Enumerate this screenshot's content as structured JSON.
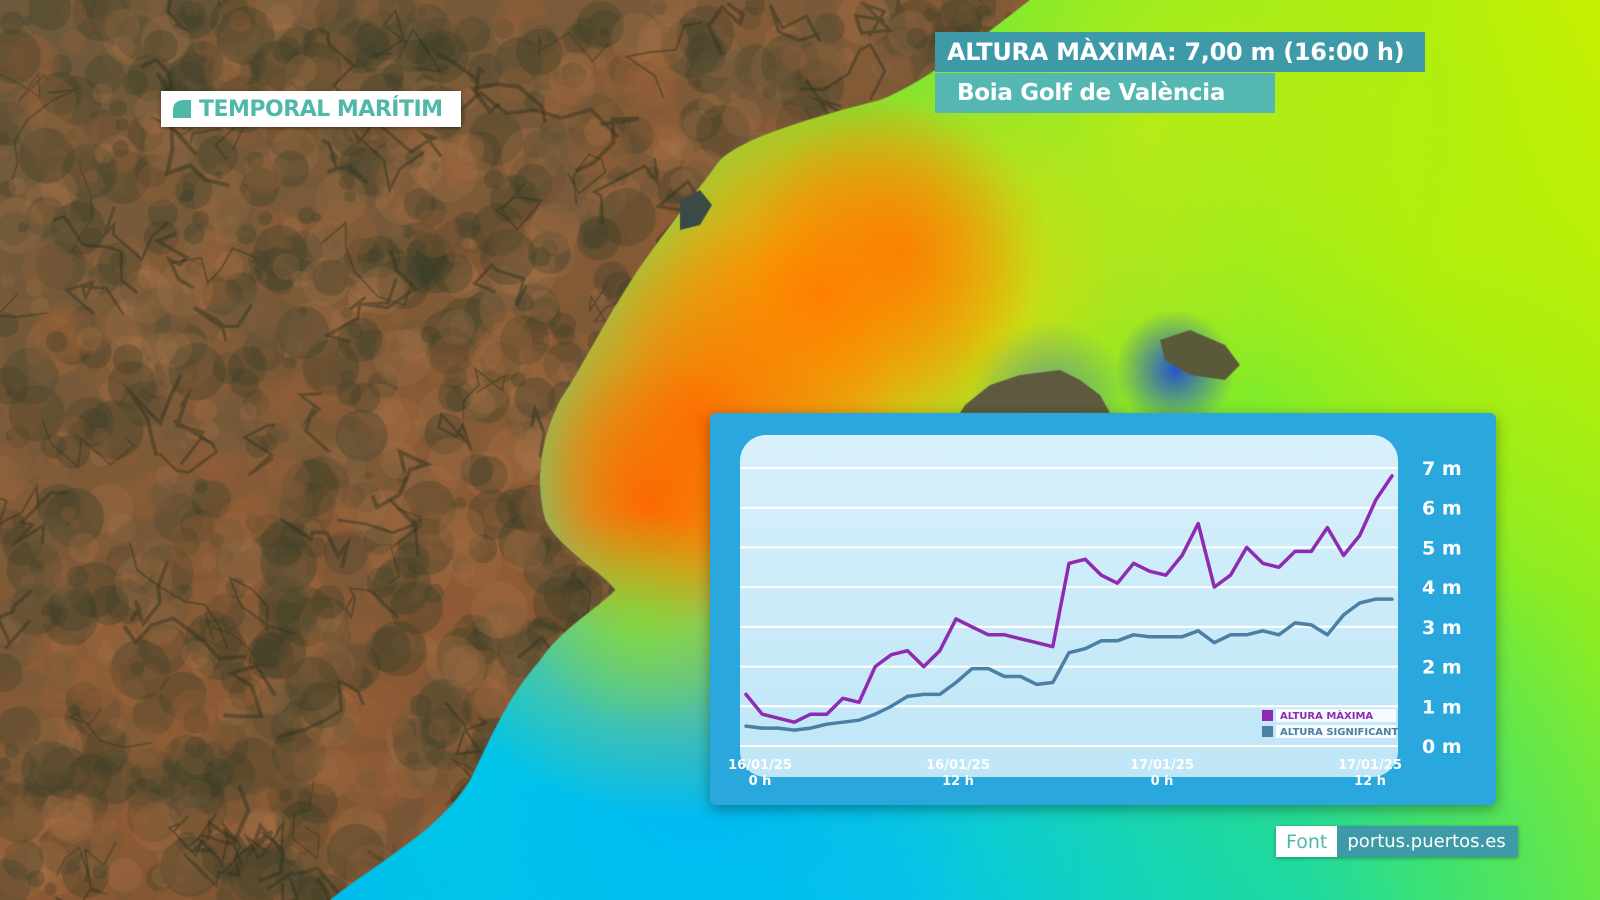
{
  "tag": {
    "label": "TEMPORAL MARÍTIM"
  },
  "title": {
    "main": "ALTURA MÀXIMA: 7,00 m (16:00 h)",
    "sub": "Boia Golf de València"
  },
  "source": {
    "label": "Font",
    "url": "portus.puertos.es"
  },
  "colors": {
    "accent_teal": "#4fb8a8",
    "title_bar": "#3e9aa8",
    "subtitle_bar": "#55b7b1",
    "chart_frame": "#2aa8de",
    "series_max": "#8e2bb0",
    "series_significant": "#4b7fa3"
  },
  "map": {
    "description_layers": [
      "satellite-land",
      "wave-height-heatmap"
    ],
    "heatmap_colors": [
      "#0a2fd8",
      "#00b7ff",
      "#00e8c8",
      "#22e860",
      "#c8f000",
      "#ffc800",
      "#ff8a00",
      "#ff5a00"
    ]
  },
  "chart_data": {
    "type": "line",
    "x_tick_labels": [
      {
        "date": "16/01/25",
        "hour": "0 h"
      },
      {
        "date": "16/01/25",
        "hour": "12 h"
      },
      {
        "date": "17/01/25",
        "hour": "0 h"
      },
      {
        "date": "17/01/25",
        "hour": "12 h"
      }
    ],
    "y_tick_labels": [
      "0 m",
      "1 m",
      "2 m",
      "3 m",
      "4 m",
      "5 m",
      "6 m",
      "7 m"
    ],
    "ylim": [
      0,
      7
    ],
    "grid": true,
    "legend_position": "bottom-right",
    "series": [
      {
        "name": "ALTURA MÀXIMA",
        "color": "#8e2bb0",
        "x": [
          0,
          1,
          2,
          3,
          4,
          5,
          6,
          7,
          8,
          9,
          10,
          11,
          12,
          13,
          14,
          15,
          16,
          17,
          18,
          19,
          20,
          21,
          22,
          23,
          24,
          25,
          26,
          27,
          28,
          29,
          30,
          31,
          32,
          33,
          34,
          35,
          36,
          37,
          38,
          39,
          40
        ],
        "values": [
          1.3,
          0.8,
          0.7,
          0.6,
          0.8,
          0.8,
          1.2,
          1.1,
          2.0,
          2.3,
          2.4,
          2.0,
          2.4,
          3.2,
          3.0,
          2.8,
          2.8,
          2.7,
          2.6,
          2.5,
          4.6,
          4.7,
          4.3,
          4.1,
          4.6,
          4.4,
          4.3,
          4.8,
          5.6,
          4.0,
          4.3,
          5.0,
          4.6,
          4.5,
          4.9,
          4.9,
          5.5,
          4.8,
          5.3,
          6.2,
          6.8
        ]
      },
      {
        "name": "ALTURA SIGNIFICANT",
        "color": "#4b7fa3",
        "x": [
          0,
          1,
          2,
          3,
          4,
          5,
          6,
          7,
          8,
          9,
          10,
          11,
          12,
          13,
          14,
          15,
          16,
          17,
          18,
          19,
          20,
          21,
          22,
          23,
          24,
          25,
          26,
          27,
          28,
          29,
          30,
          31,
          32,
          33,
          34,
          35,
          36,
          37,
          38,
          39,
          40
        ],
        "values": [
          0.5,
          0.45,
          0.45,
          0.4,
          0.45,
          0.55,
          0.6,
          0.65,
          0.8,
          1.0,
          1.25,
          1.3,
          1.3,
          1.6,
          1.95,
          1.95,
          1.75,
          1.75,
          1.55,
          1.6,
          2.35,
          2.45,
          2.65,
          2.65,
          2.8,
          2.75,
          2.75,
          2.75,
          2.9,
          2.6,
          2.8,
          2.8,
          2.9,
          2.8,
          3.1,
          3.05,
          2.8,
          3.3,
          3.6,
          3.7,
          3.7
        ]
      }
    ]
  }
}
